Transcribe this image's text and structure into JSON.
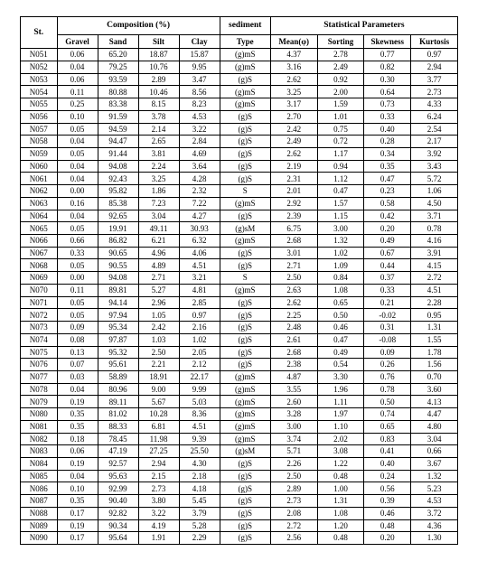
{
  "header": {
    "st": "St.",
    "comp": "Composition (%)",
    "sed_top": "sediment",
    "statp": "Statistical Parameters",
    "gravel": "Gravel",
    "sand": "Sand",
    "silt": "Silt",
    "clay": "Clay",
    "sed_bot": "Type",
    "mean": "Mean(φ)",
    "sort": "Sorting",
    "skew": "Skewness",
    "kurt": "Kurtosis"
  },
  "rows": [
    {
      "st": "N051",
      "g": "0.06",
      "sa": "65.20",
      "si": "18.87",
      "cl": "15.87",
      "t": "(g)mS",
      "m": "4.37",
      "so": "2.78",
      "sk": "0.77",
      "ku": "0.97"
    },
    {
      "st": "N052",
      "g": "0.04",
      "sa": "79.25",
      "si": "10.76",
      "cl": "9.95",
      "t": "(g)mS",
      "m": "3.16",
      "so": "2.49",
      "sk": "0.82",
      "ku": "2.94"
    },
    {
      "st": "N053",
      "g": "0.06",
      "sa": "93.59",
      "si": "2.89",
      "cl": "3.47",
      "t": "(g)S",
      "m": "2.62",
      "so": "0.92",
      "sk": "0.30",
      "ku": "3.77"
    },
    {
      "st": "N054",
      "g": "0.11",
      "sa": "80.88",
      "si": "10.46",
      "cl": "8.56",
      "t": "(g)mS",
      "m": "3.25",
      "so": "2.00",
      "sk": "0.64",
      "ku": "2.73"
    },
    {
      "st": "N055",
      "g": "0.25",
      "sa": "83.38",
      "si": "8.15",
      "cl": "8.23",
      "t": "(g)mS",
      "m": "3.17",
      "so": "1.59",
      "sk": "0.73",
      "ku": "4.33"
    },
    {
      "st": "N056",
      "g": "0.10",
      "sa": "91.59",
      "si": "3.78",
      "cl": "4.53",
      "t": "(g)S",
      "m": "2.70",
      "so": "1.01",
      "sk": "0.33",
      "ku": "6.24"
    },
    {
      "st": "N057",
      "g": "0.05",
      "sa": "94.59",
      "si": "2.14",
      "cl": "3.22",
      "t": "(g)S",
      "m": "2.42",
      "so": "0.75",
      "sk": "0.40",
      "ku": "2.54"
    },
    {
      "st": "N058",
      "g": "0.04",
      "sa": "94.47",
      "si": "2.65",
      "cl": "2.84",
      "t": "(g)S",
      "m": "2.49",
      "so": "0.72",
      "sk": "0.28",
      "ku": "2.17"
    },
    {
      "st": "N059",
      "g": "0.05",
      "sa": "91.44",
      "si": "3.81",
      "cl": "4.69",
      "t": "(g)S",
      "m": "2.62",
      "so": "1.17",
      "sk": "0.34",
      "ku": "3.92"
    },
    {
      "st": "N060",
      "g": "0.04",
      "sa": "94.08",
      "si": "2.24",
      "cl": "3.64",
      "t": "(g)S",
      "m": "2.19",
      "so": "0.94",
      "sk": "0.35",
      "ku": "3.43"
    },
    {
      "st": "N061",
      "g": "0.04",
      "sa": "92.43",
      "si": "3.25",
      "cl": "4.28",
      "t": "(g)S",
      "m": "2.31",
      "so": "1.12",
      "sk": "0.47",
      "ku": "5.72"
    },
    {
      "st": "N062",
      "g": "0.00",
      "sa": "95.82",
      "si": "1.86",
      "cl": "2.32",
      "t": "S",
      "m": "2.01",
      "so": "0.47",
      "sk": "0.23",
      "ku": "1.06"
    },
    {
      "st": "N063",
      "g": "0.16",
      "sa": "85.38",
      "si": "7.23",
      "cl": "7.22",
      "t": "(g)mS",
      "m": "2.92",
      "so": "1.57",
      "sk": "0.58",
      "ku": "4.50"
    },
    {
      "st": "N064",
      "g": "0.04",
      "sa": "92.65",
      "si": "3.04",
      "cl": "4.27",
      "t": "(g)S",
      "m": "2.39",
      "so": "1.15",
      "sk": "0.42",
      "ku": "3.71"
    },
    {
      "st": "N065",
      "g": "0.05",
      "sa": "19.91",
      "si": "49.11",
      "cl": "30.93",
      "t": "(g)sM",
      "m": "6.75",
      "so": "3.00",
      "sk": "0.20",
      "ku": "0.78"
    },
    {
      "st": "N066",
      "g": "0.66",
      "sa": "86.82",
      "si": "6.21",
      "cl": "6.32",
      "t": "(g)mS",
      "m": "2.68",
      "so": "1.32",
      "sk": "0.49",
      "ku": "4.16"
    },
    {
      "st": "N067",
      "g": "0.33",
      "sa": "90.65",
      "si": "4.96",
      "cl": "4.06",
      "t": "(g)S",
      "m": "3.01",
      "so": "1.02",
      "sk": "0.67",
      "ku": "3.91"
    },
    {
      "st": "N068",
      "g": "0.05",
      "sa": "90.55",
      "si": "4.89",
      "cl": "4.51",
      "t": "(g)S",
      "m": "2.71",
      "so": "1.09",
      "sk": "0.44",
      "ku": "4.15"
    },
    {
      "st": "N069",
      "g": "0.00",
      "sa": "94.08",
      "si": "2.71",
      "cl": "3.21",
      "t": "S",
      "m": "2.50",
      "so": "0.84",
      "sk": "0.37",
      "ku": "2.72"
    },
    {
      "st": "N070",
      "g": "0.11",
      "sa": "89.81",
      "si": "5.27",
      "cl": "4.81",
      "t": "(g)mS",
      "m": "2.63",
      "so": "1.08",
      "sk": "0.33",
      "ku": "4.51"
    },
    {
      "st": "N071",
      "g": "0.05",
      "sa": "94.14",
      "si": "2.96",
      "cl": "2.85",
      "t": "(g)S",
      "m": "2.62",
      "so": "0.65",
      "sk": "0.21",
      "ku": "2.28"
    },
    {
      "st": "N072",
      "g": "0.05",
      "sa": "97.94",
      "si": "1.05",
      "cl": "0.97",
      "t": "(g)S",
      "m": "2.25",
      "so": "0.50",
      "sk": "-0.02",
      "ku": "0.95"
    },
    {
      "st": "N073",
      "g": "0.09",
      "sa": "95.34",
      "si": "2.42",
      "cl": "2.16",
      "t": "(g)S",
      "m": "2.48",
      "so": "0.46",
      "sk": "0.31",
      "ku": "1.31"
    },
    {
      "st": "N074",
      "g": "0.08",
      "sa": "97.87",
      "si": "1.03",
      "cl": "1.02",
      "t": "(g)S",
      "m": "2.61",
      "so": "0.47",
      "sk": "-0.08",
      "ku": "1.55"
    },
    {
      "st": "N075",
      "g": "0.13",
      "sa": "95.32",
      "si": "2.50",
      "cl": "2.05",
      "t": "(g)S",
      "m": "2.68",
      "so": "0.49",
      "sk": "0.09",
      "ku": "1.78"
    },
    {
      "st": "N076",
      "g": "0.07",
      "sa": "95.61",
      "si": "2.21",
      "cl": "2.12",
      "t": "(g)S",
      "m": "2.38",
      "so": "0.54",
      "sk": "0.26",
      "ku": "1.56"
    },
    {
      "st": "N077",
      "g": "0.03",
      "sa": "58.89",
      "si": "18.91",
      "cl": "22.17",
      "t": "(g)mS",
      "m": "4.87",
      "so": "3.30",
      "sk": "0.76",
      "ku": "0.70"
    },
    {
      "st": "N078",
      "g": "0.04",
      "sa": "80.96",
      "si": "9.00",
      "cl": "9.99",
      "t": "(g)mS",
      "m": "3.55",
      "so": "1.96",
      "sk": "0.78",
      "ku": "3.60"
    },
    {
      "st": "N079",
      "g": "0.19",
      "sa": "89.11",
      "si": "5.67",
      "cl": "5.03",
      "t": "(g)mS",
      "m": "2.60",
      "so": "1.11",
      "sk": "0.50",
      "ku": "4.13"
    },
    {
      "st": "N080",
      "g": "0.35",
      "sa": "81.02",
      "si": "10.28",
      "cl": "8.36",
      "t": "(g)mS",
      "m": "3.28",
      "so": "1.97",
      "sk": "0.74",
      "ku": "4.47"
    },
    {
      "st": "N081",
      "g": "0.35",
      "sa": "88.33",
      "si": "6.81",
      "cl": "4.51",
      "t": "(g)mS",
      "m": "3.00",
      "so": "1.10",
      "sk": "0.65",
      "ku": "4.80"
    },
    {
      "st": "N082",
      "g": "0.18",
      "sa": "78.45",
      "si": "11.98",
      "cl": "9.39",
      "t": "(g)mS",
      "m": "3.74",
      "so": "2.02",
      "sk": "0.83",
      "ku": "3.04"
    },
    {
      "st": "N083",
      "g": "0.06",
      "sa": "47.19",
      "si": "27.25",
      "cl": "25.50",
      "t": "(g)sM",
      "m": "5.71",
      "so": "3.08",
      "sk": "0.41",
      "ku": "0.66"
    },
    {
      "st": "N084",
      "g": "0.19",
      "sa": "92.57",
      "si": "2.94",
      "cl": "4.30",
      "t": "(g)S",
      "m": "2.26",
      "so": "1.22",
      "sk": "0.40",
      "ku": "3.67"
    },
    {
      "st": "N085",
      "g": "0.04",
      "sa": "95.63",
      "si": "2.15",
      "cl": "2.18",
      "t": "(g)S",
      "m": "2.50",
      "so": "0.48",
      "sk": "0.24",
      "ku": "1.32"
    },
    {
      "st": "N086",
      "g": "0.10",
      "sa": "92.99",
      "si": "2.73",
      "cl": "4.18",
      "t": "(g)S",
      "m": "2.89",
      "so": "1.00",
      "sk": "0.56",
      "ku": "5.23"
    },
    {
      "st": "N087",
      "g": "0.35",
      "sa": "90.40",
      "si": "3.80",
      "cl": "5.45",
      "t": "(g)S",
      "m": "2.73",
      "so": "1.31",
      "sk": "0.39",
      "ku": "4.53"
    },
    {
      "st": "N088",
      "g": "0.17",
      "sa": "92.82",
      "si": "3.22",
      "cl": "3.79",
      "t": "(g)S",
      "m": "2.08",
      "so": "1.08",
      "sk": "0.46",
      "ku": "3.72"
    },
    {
      "st": "N089",
      "g": "0.19",
      "sa": "90.34",
      "si": "4.19",
      "cl": "5.28",
      "t": "(g)S",
      "m": "2.72",
      "so": "1.20",
      "sk": "0.48",
      "ku": "4.36"
    },
    {
      "st": "N090",
      "g": "0.17",
      "sa": "95.64",
      "si": "1.91",
      "cl": "2.29",
      "t": "(g)S",
      "m": "2.56",
      "so": "0.48",
      "sk": "0.20",
      "ku": "1.30"
    }
  ]
}
